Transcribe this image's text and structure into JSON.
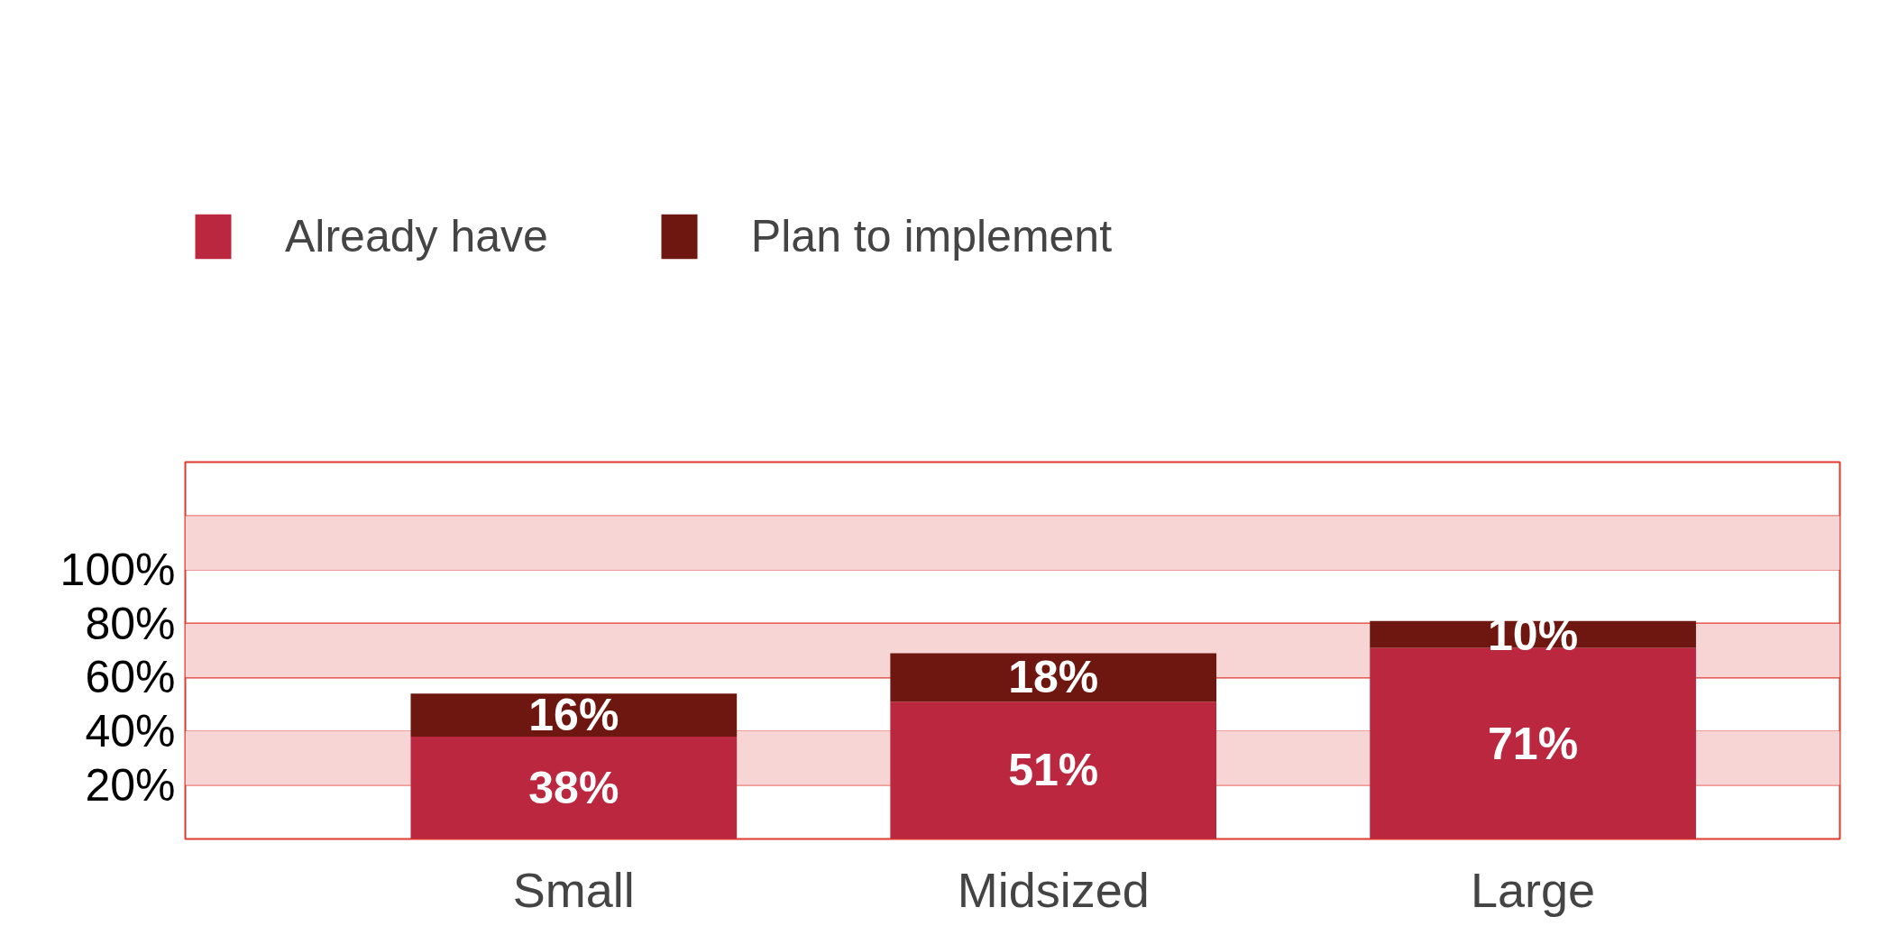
{
  "chart_data": {
    "type": "bar",
    "stacked": true,
    "categories": [
      "Small",
      "Midsized",
      "Large"
    ],
    "series": [
      {
        "name": "Already have",
        "color": "#bc2740",
        "values": [
          38,
          51,
          71
        ]
      },
      {
        "name": "Plan to implement",
        "color": "#6e1710",
        "values": [
          16,
          18,
          10
        ]
      }
    ],
    "ylim": [
      0,
      140
    ],
    "yticks": [
      {
        "value": 20,
        "label": "20%"
      },
      {
        "value": 40,
        "label": "40%"
      },
      {
        "value": 60,
        "label": "60%"
      },
      {
        "value": 80,
        "label": "80%"
      },
      {
        "value": 100,
        "label": "100%"
      },
      {
        "value": 120,
        "label": null
      }
    ],
    "grid": "y",
    "bands": [
      {
        "axis": "y",
        "from": 20,
        "to": 40,
        "color": "#f6d5d4"
      },
      {
        "axis": "y",
        "from": 60,
        "to": 80,
        "color": "#f6d5d4"
      },
      {
        "axis": "y",
        "from": 100,
        "to": 120,
        "color": "#f6d5d4"
      }
    ],
    "value_labels": [
      [
        "38%",
        "51%",
        "71%"
      ],
      [
        "16%",
        "18%",
        "10%"
      ]
    ],
    "legend": "top"
  }
}
